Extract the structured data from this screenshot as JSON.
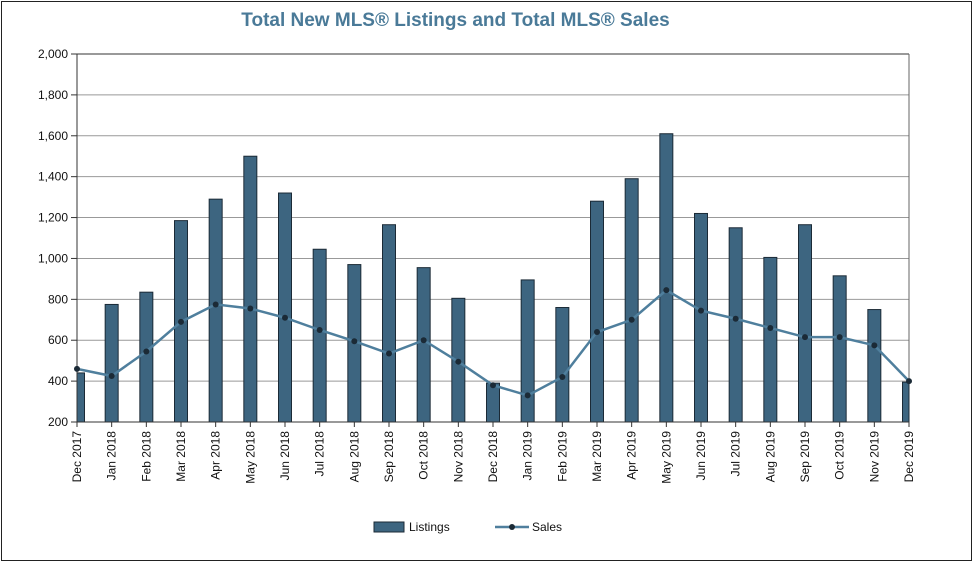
{
  "chart_data": {
    "type": "bar",
    "title": "Total New MLS® Listings and Total MLS® Sales",
    "categories": [
      "Dec 2017",
      "Jan 2018",
      "Feb 2018",
      "Mar 2018",
      "Apr 2018",
      "May 2018",
      "Jun 2018",
      "Jul 2018",
      "Aug 2018",
      "Sep 2018",
      "Oct 2018",
      "Nov 2018",
      "Dec 2018",
      "Jan 2019",
      "Feb 2019",
      "Mar 2019",
      "Apr 2019",
      "May 2019",
      "Jun 2019",
      "Jul 2019",
      "Aug 2019",
      "Sep 2019",
      "Oct 2019",
      "Nov 2019",
      "Dec 2019"
    ],
    "series": [
      {
        "name": "Listings",
        "type": "bar",
        "color": "#3d6580",
        "values": [
          440,
          775,
          835,
          1185,
          1290,
          1500,
          1320,
          1045,
          970,
          1165,
          955,
          805,
          390,
          895,
          760,
          1280,
          1390,
          1610,
          1220,
          1150,
          1005,
          1165,
          915,
          750,
          395
        ]
      },
      {
        "name": "Sales",
        "type": "line",
        "color": "#4f7f9d",
        "values": [
          460,
          425,
          545,
          690,
          775,
          755,
          710,
          650,
          595,
          535,
          600,
          495,
          380,
          330,
          420,
          640,
          700,
          845,
          745,
          705,
          660,
          615,
          615,
          575,
          400
        ]
      }
    ],
    "ylim": [
      200,
      2000
    ],
    "yticks": [
      "200",
      "400",
      "600",
      "800",
      "1,000",
      "1,200",
      "1,400",
      "1,600",
      "1,800",
      "2,000"
    ],
    "ytick_values": [
      200,
      400,
      600,
      800,
      1000,
      1200,
      1400,
      1600,
      1800,
      2000
    ],
    "xlabel": "",
    "ylabel": "",
    "grid": true,
    "legend": "bottom-center"
  }
}
